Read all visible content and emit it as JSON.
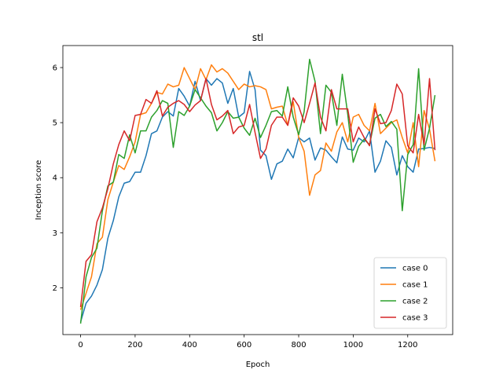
{
  "chart_data": {
    "type": "line",
    "title": "stl",
    "xlabel": "Epoch",
    "ylabel": "Inception score",
    "xlim": [
      -65,
      1365
    ],
    "ylim": [
      1.15,
      6.4
    ],
    "xticks": [
      0,
      200,
      400,
      600,
      800,
      1000,
      1200
    ],
    "yticks": [
      2,
      3,
      4,
      5,
      6
    ],
    "legend_position": "bottom-right",
    "grid": false,
    "x": [
      0,
      20,
      40,
      60,
      80,
      100,
      120,
      140,
      160,
      180,
      200,
      220,
      240,
      260,
      280,
      300,
      320,
      340,
      360,
      380,
      400,
      420,
      440,
      460,
      480,
      500,
      520,
      540,
      560,
      580,
      600,
      620,
      640,
      660,
      680,
      700,
      720,
      740,
      760,
      780,
      800,
      820,
      840,
      860,
      880,
      900,
      920,
      940,
      960,
      980,
      1000,
      1020,
      1040,
      1060,
      1080,
      1100,
      1120,
      1140,
      1160,
      1180,
      1200,
      1220,
      1240,
      1260,
      1280,
      1300
    ],
    "series": [
      {
        "name": "case 0",
        "color": "#1f77b4",
        "values": [
          1.38,
          1.72,
          1.85,
          2.05,
          2.33,
          2.9,
          3.22,
          3.65,
          3.9,
          3.93,
          4.1,
          4.1,
          4.4,
          4.8,
          4.85,
          5.1,
          5.2,
          5.12,
          5.62,
          5.48,
          5.3,
          5.75,
          5.4,
          5.8,
          5.68,
          5.8,
          5.72,
          5.35,
          5.62,
          5.1,
          5.18,
          5.93,
          5.6,
          4.5,
          4.4,
          3.97,
          4.25,
          4.3,
          4.52,
          4.36,
          4.73,
          4.65,
          4.72,
          4.32,
          4.54,
          4.5,
          4.38,
          4.27,
          4.74,
          4.52,
          4.5,
          4.72,
          4.65,
          4.85,
          4.1,
          4.3,
          4.67,
          4.55,
          4.05,
          4.4,
          4.2,
          4.1,
          4.52,
          4.53,
          4.55,
          4.53
        ]
      },
      {
        "name": "case 1",
        "color": "#ff7f0e",
        "values": [
          1.6,
          1.9,
          2.2,
          2.8,
          2.92,
          3.6,
          3.92,
          4.22,
          4.15,
          4.38,
          4.65,
          5.15,
          5.18,
          5.35,
          5.55,
          5.52,
          5.7,
          5.65,
          5.68,
          6.0,
          5.8,
          5.6,
          5.98,
          5.78,
          6.05,
          5.92,
          5.98,
          5.9,
          5.75,
          5.6,
          5.7,
          5.65,
          5.67,
          5.65,
          5.6,
          5.25,
          5.28,
          5.3,
          4.95,
          5.38,
          4.73,
          4.48,
          3.68,
          4.05,
          4.13,
          4.63,
          4.48,
          4.83,
          5.0,
          4.65,
          5.1,
          5.15,
          4.95,
          4.85,
          5.35,
          4.8,
          4.9,
          5.0,
          5.05,
          4.73,
          4.45,
          5.0,
          4.2,
          5.22,
          4.88,
          4.3
        ]
      },
      {
        "name": "case 2",
        "color": "#2ca02c",
        "values": [
          1.35,
          2.2,
          2.55,
          2.72,
          3.4,
          3.85,
          3.92,
          4.42,
          4.35,
          4.78,
          4.45,
          4.85,
          4.85,
          5.1,
          5.22,
          5.4,
          5.35,
          4.55,
          5.2,
          5.13,
          5.3,
          5.6,
          5.45,
          5.3,
          5.18,
          4.85,
          5.0,
          5.2,
          5.08,
          5.1,
          4.9,
          4.77,
          5.08,
          4.73,
          4.95,
          5.2,
          5.22,
          5.12,
          5.65,
          5.1,
          4.78,
          5.2,
          6.15,
          5.75,
          4.8,
          5.68,
          5.55,
          4.95,
          5.88,
          5.15,
          4.28,
          4.57,
          4.7,
          4.6,
          5.08,
          5.15,
          4.93,
          5.02,
          4.88,
          3.4,
          4.42,
          4.6,
          5.98,
          4.5,
          4.9,
          5.5
        ]
      },
      {
        "name": "case 3",
        "color": "#d62728",
        "values": [
          1.65,
          2.48,
          2.6,
          3.2,
          3.45,
          3.8,
          4.25,
          4.6,
          4.85,
          4.67,
          5.13,
          5.15,
          5.42,
          5.35,
          5.58,
          5.12,
          5.28,
          5.35,
          5.4,
          5.33,
          5.2,
          5.32,
          5.4,
          5.8,
          5.33,
          5.05,
          5.12,
          5.22,
          4.8,
          4.92,
          4.95,
          5.33,
          4.82,
          4.35,
          4.52,
          4.95,
          5.1,
          5.1,
          4.95,
          5.45,
          5.3,
          5.0,
          5.35,
          5.72,
          5.1,
          4.85,
          5.6,
          5.25,
          5.25,
          5.25,
          4.65,
          4.92,
          4.73,
          4.58,
          5.25,
          4.98,
          5.0,
          5.22,
          5.7,
          5.52,
          4.58,
          4.45,
          5.15,
          4.6,
          5.8,
          4.5
        ]
      }
    ]
  }
}
